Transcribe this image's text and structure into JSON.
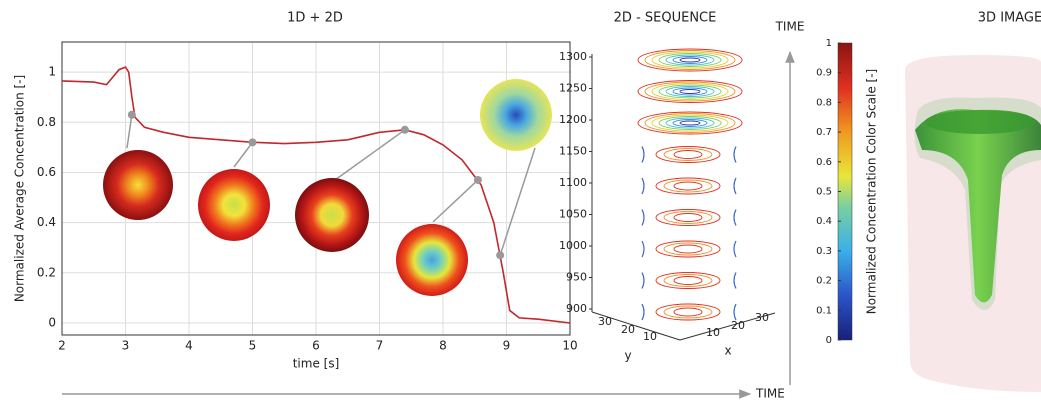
{
  "chart_data": [
    {
      "type": "line",
      "title": "1D + 2D",
      "xlabel": "time [s]",
      "ylabel": "Normalized Average Concentration [-]",
      "x": [
        2,
        2.5,
        2.7,
        2.8,
        2.9,
        3.0,
        3.05,
        3.1,
        3.15,
        3.3,
        3.6,
        4,
        4.5,
        5,
        5.5,
        6,
        6.5,
        7,
        7.4,
        7.7,
        8,
        8.3,
        8.6,
        8.8,
        8.95,
        9.05,
        9.2,
        9.5,
        10
      ],
      "values": [
        0.965,
        0.96,
        0.95,
        0.98,
        1.01,
        1.02,
        1.0,
        0.9,
        0.82,
        0.78,
        0.76,
        0.74,
        0.73,
        0.72,
        0.715,
        0.72,
        0.73,
        0.76,
        0.77,
        0.75,
        0.71,
        0.65,
        0.55,
        0.4,
        0.2,
        0.05,
        0.02,
        0.015,
        0.0
      ],
      "color": "#c1272d",
      "markers": {
        "x": [
          3.1,
          5,
          7.4,
          8.55,
          8.9
        ],
        "values": [
          0.83,
          0.72,
          0.77,
          0.57,
          0.27
        ],
        "color": "#999999"
      },
      "xlim": [
        2,
        10
      ],
      "xticks": [
        2,
        3,
        4,
        5,
        6,
        7,
        8,
        9,
        10
      ],
      "ylim": [
        -0.048,
        1.12
      ],
      "yticks": [
        0,
        0.2,
        0.4,
        0.6,
        0.8,
        1
      ],
      "grid": true
    },
    {
      "type": "contour3d",
      "title": "2D - SEQUENCE",
      "xlabel": "x",
      "ylabel": "y",
      "zlim": [
        900,
        1300
      ],
      "zticks": [
        900,
        950,
        1000,
        1050,
        1100,
        1150,
        1200,
        1250,
        1300
      ],
      "xticks": [
        10,
        20,
        30
      ],
      "yticks": [
        10,
        20,
        30
      ]
    },
    {
      "type": "colorbar",
      "ylabel": "Normalized Concentration Color Scale [-]",
      "ylim": [
        0,
        1
      ],
      "yticks": [
        0,
        0.1,
        0.2,
        0.3,
        0.4,
        0.5,
        0.6,
        0.7,
        0.8,
        0.9,
        1
      ]
    }
  ],
  "arrows": [
    {
      "label": "TIME"
    },
    {
      "label": "TIME"
    }
  ],
  "image_panel": {
    "title": "3D IMAGE"
  }
}
